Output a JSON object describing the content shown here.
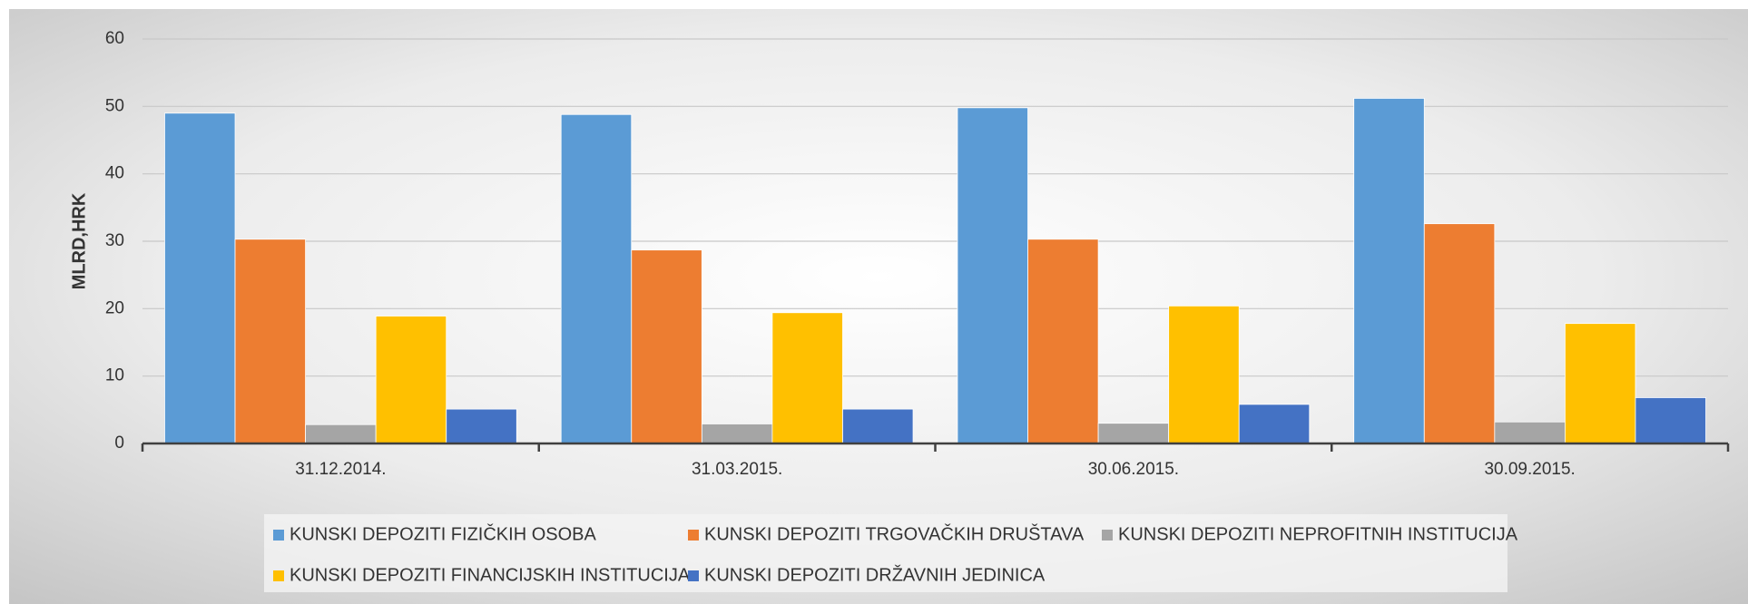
{
  "chart_data": {
    "type": "bar",
    "y_label": "MLRD,HRK",
    "categories": [
      "31.12.2014.",
      "31.03.2015.",
      "30.06.2015.",
      "30.09.2015."
    ],
    "series": [
      {
        "name": "KUNSKI DEPOZITI FIZIČKIH OSOBA",
        "color": "#5b9bd5",
        "values": [
          49.0,
          48.8,
          49.8,
          51.2
        ]
      },
      {
        "name": "KUNSKI DEPOZITI TRGOVAČKIH DRUŠTAVA",
        "color": "#ed7d31",
        "values": [
          30.3,
          28.7,
          30.3,
          32.6
        ]
      },
      {
        "name": "KUNSKI DEPOZITI NEPROFITNIH INSTITUCIJA",
        "color": "#a5a5a5",
        "values": [
          2.8,
          2.9,
          3.0,
          3.2
        ]
      },
      {
        "name": "KUNSKI DEPOZITI FINANCIJSKIH INSTITUCIJA",
        "color": "#ffc000",
        "values": [
          18.9,
          19.4,
          20.4,
          17.8
        ]
      },
      {
        "name": "KUNSKI DEPOZITI DRŽAVNIH JEDINICA",
        "color": "#4472c4",
        "values": [
          5.1,
          5.1,
          5.8,
          6.8
        ]
      }
    ],
    "ylim": [
      0,
      60
    ],
    "yticks": [
      0,
      10,
      20,
      30,
      40,
      50,
      60
    ],
    "grid": true,
    "legend": "bottom"
  }
}
